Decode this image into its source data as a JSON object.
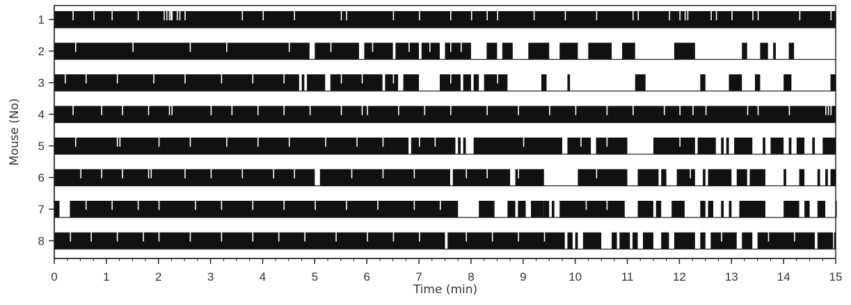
{
  "chart_data": {
    "type": "raster",
    "xlabel": "Time (min)",
    "ylabel": "Mouse (No)",
    "xlim": [
      0,
      15
    ],
    "x_ticks": [
      "0",
      "1",
      "2",
      "3",
      "4",
      "5",
      "6",
      "7",
      "8",
      "9",
      "10",
      "11",
      "12",
      "13",
      "14",
      "15"
    ],
    "bar_color": "#111111",
    "series": [
      {
        "name": "1",
        "blocks": [
          [
            0,
            15
          ]
        ],
        "gaps": [
          0.35,
          0.75,
          1.1,
          1.6,
          2.1,
          2.15,
          2.2,
          2.23,
          2.25,
          2.35,
          2.4,
          2.5,
          3.6,
          4.0,
          4.6,
          5.5,
          5.6,
          6.5,
          7.0,
          7.6,
          8.0,
          8.3,
          8.5,
          9.2,
          9.8,
          10.4,
          11.1,
          11.2,
          11.8,
          12.0,
          12.1,
          12.15,
          12.6,
          12.7,
          13.0,
          13.4,
          13.5,
          14.3,
          14.9
        ]
      },
      {
        "name": "2",
        "blocks": [
          [
            0,
            4.9
          ],
          [
            5.0,
            5.85
          ],
          [
            5.95,
            6.5
          ],
          [
            6.55,
            7.0
          ],
          [
            7.05,
            7.4
          ],
          [
            7.5,
            8.0
          ],
          [
            8.3,
            8.5
          ],
          [
            8.6,
            8.8
          ],
          [
            9.1,
            9.5
          ],
          [
            9.7,
            10.05
          ],
          [
            10.25,
            10.7
          ],
          [
            10.9,
            11.15
          ],
          [
            11.9,
            12.3
          ],
          [
            13.2,
            13.3
          ],
          [
            13.55,
            13.7
          ],
          [
            13.8,
            13.85
          ],
          [
            14.1,
            14.2
          ]
        ],
        "gaps": [
          0.4,
          1.5,
          2.6,
          3.3,
          4.5,
          5.3,
          6.1,
          6.8,
          7.2,
          7.6,
          7.8
        ]
      },
      {
        "name": "3",
        "blocks": [
          [
            0,
            4.7
          ],
          [
            4.75,
            4.8
          ],
          [
            4.85,
            5.2
          ],
          [
            5.3,
            6.3
          ],
          [
            6.35,
            6.6
          ],
          [
            6.7,
            7.0
          ],
          [
            7.4,
            7.8
          ],
          [
            7.85,
            8.0
          ],
          [
            8.05,
            8.15
          ],
          [
            8.25,
            8.7
          ],
          [
            9.35,
            9.45
          ],
          [
            9.85,
            9.9
          ],
          [
            11.15,
            11.35
          ],
          [
            12.4,
            12.5
          ],
          [
            12.95,
            13.2
          ],
          [
            13.45,
            13.55
          ],
          [
            14.0,
            14.15
          ],
          [
            14.9,
            15.0
          ]
        ],
        "gaps": [
          0.2,
          0.6,
          1.2,
          1.9,
          2.5,
          3.2,
          3.8,
          4.4,
          5.5,
          5.9,
          6.5,
          7.6,
          8.5
        ]
      },
      {
        "name": "4",
        "blocks": [
          [
            0,
            15
          ]
        ],
        "gaps": [
          0.35,
          0.9,
          1.3,
          1.8,
          2.2,
          2.25,
          3.0,
          3.4,
          3.9,
          4.4,
          4.9,
          5.5,
          5.9,
          6.0,
          6.6,
          7.1,
          7.6,
          8.3,
          8.9,
          9.5,
          10.0,
          10.6,
          11.1,
          11.7,
          12.0,
          12.25,
          12.5,
          13.3,
          13.5,
          14.1,
          14.8,
          14.85,
          14.9
        ]
      },
      {
        "name": "5",
        "blocks": [
          [
            0,
            6.8
          ],
          [
            6.85,
            7.7
          ],
          [
            7.75,
            7.8
          ],
          [
            7.85,
            7.9
          ],
          [
            8.05,
            9.75
          ],
          [
            9.85,
            10.3
          ],
          [
            10.4,
            11.0
          ],
          [
            11.5,
            12.3
          ],
          [
            12.35,
            12.7
          ],
          [
            12.8,
            12.85
          ],
          [
            12.9,
            12.95
          ],
          [
            13.05,
            13.4
          ],
          [
            13.6,
            13.65
          ],
          [
            13.75,
            14.0
          ],
          [
            14.1,
            14.15
          ],
          [
            14.25,
            14.4
          ],
          [
            14.55,
            14.6
          ],
          [
            14.75,
            15.0
          ]
        ],
        "gaps": [
          0.4,
          1.2,
          1.25,
          2.0,
          2.6,
          3.3,
          3.9,
          4.5,
          5.2,
          5.8,
          6.3,
          7.0,
          7.3,
          9.0,
          10.1,
          10.6,
          12.0
        ]
      },
      {
        "name": "6",
        "blocks": [
          [
            0,
            5.0
          ],
          [
            5.1,
            7.6
          ],
          [
            7.65,
            8.75
          ],
          [
            8.85,
            9.4
          ],
          [
            10.05,
            11.0
          ],
          [
            11.2,
            11.6
          ],
          [
            11.65,
            11.75
          ],
          [
            11.95,
            12.3
          ],
          [
            12.45,
            12.5
          ],
          [
            12.55,
            13.0
          ],
          [
            13.1,
            13.3
          ],
          [
            13.35,
            13.65
          ],
          [
            14.0,
            14.05
          ],
          [
            14.3,
            14.4
          ],
          [
            14.65,
            14.7
          ],
          [
            14.8,
            14.85
          ],
          [
            14.9,
            15.0
          ]
        ],
        "gaps": [
          0.5,
          0.9,
          1.3,
          1.8,
          1.85,
          2.5,
          3.0,
          3.6,
          4.2,
          4.6,
          5.7,
          6.3,
          6.9,
          7.9,
          8.3,
          8.9,
          10.4,
          12.2
        ]
      },
      {
        "name": "7",
        "blocks": [
          [
            0,
            0.1
          ],
          [
            0.3,
            7.75
          ],
          [
            8.15,
            8.45
          ],
          [
            8.7,
            8.85
          ],
          [
            8.9,
            9.05
          ],
          [
            9.15,
            9.4
          ],
          [
            9.4,
            9.5
          ],
          [
            9.55,
            9.6
          ],
          [
            9.7,
            10.95
          ],
          [
            11.2,
            11.5
          ],
          [
            11.55,
            11.65
          ],
          [
            11.85,
            12.1
          ],
          [
            12.4,
            12.5
          ],
          [
            12.55,
            12.65
          ],
          [
            12.8,
            12.85
          ],
          [
            12.95,
            13.0
          ],
          [
            13.15,
            13.65
          ],
          [
            14.0,
            14.3
          ],
          [
            14.4,
            14.5
          ],
          [
            14.65,
            14.8
          ],
          [
            15.0,
            15.0
          ]
        ],
        "gaps": [
          0.6,
          1.1,
          1.6,
          2.0,
          2.7,
          3.2,
          3.8,
          4.4,
          5.0,
          5.6,
          6.2,
          6.9,
          7.4,
          10.2,
          10.6
        ]
      },
      {
        "name": "8",
        "blocks": [
          [
            0,
            7.5
          ],
          [
            7.55,
            9.8
          ],
          [
            9.85,
            9.95
          ],
          [
            10.0,
            10.05
          ],
          [
            10.15,
            10.5
          ],
          [
            10.7,
            10.8
          ],
          [
            10.85,
            11.05
          ],
          [
            11.1,
            11.2
          ],
          [
            11.3,
            11.5
          ],
          [
            11.65,
            11.8
          ],
          [
            11.9,
            12.3
          ],
          [
            12.4,
            12.5
          ],
          [
            12.6,
            13.1
          ],
          [
            13.2,
            13.4
          ],
          [
            13.5,
            14.6
          ],
          [
            14.65,
            14.95
          ],
          [
            14.97,
            15.0
          ]
        ],
        "gaps": [
          0.3,
          0.7,
          1.2,
          1.7,
          2.0,
          2.6,
          3.2,
          3.8,
          4.3,
          4.8,
          5.4,
          6.0,
          6.5,
          7.0,
          7.9,
          8.4,
          8.9,
          9.4,
          12.8,
          13.7,
          14.2
        ]
      }
    ]
  }
}
